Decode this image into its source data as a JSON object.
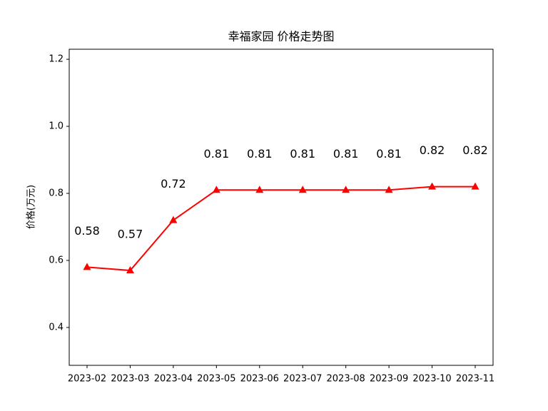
{
  "chart_data": {
    "type": "line",
    "title": "幸福家园 价格走势图",
    "ylabel": "价格(万元)",
    "categories": [
      "2023-02",
      "2023-03",
      "2023-04",
      "2023-05",
      "2023-06",
      "2023-07",
      "2023-08",
      "2023-09",
      "2023-10",
      "2023-11"
    ],
    "values": [
      0.58,
      0.57,
      0.72,
      0.81,
      0.81,
      0.81,
      0.81,
      0.81,
      0.82,
      0.82
    ],
    "color": "#ff0000",
    "marker": "triangle",
    "ylim": [
      0.287,
      1.23
    ],
    "yticks": [
      0.4,
      0.6,
      0.8,
      {
        "value": 1,
        "label": "1.0"
      },
      1.2
    ]
  }
}
